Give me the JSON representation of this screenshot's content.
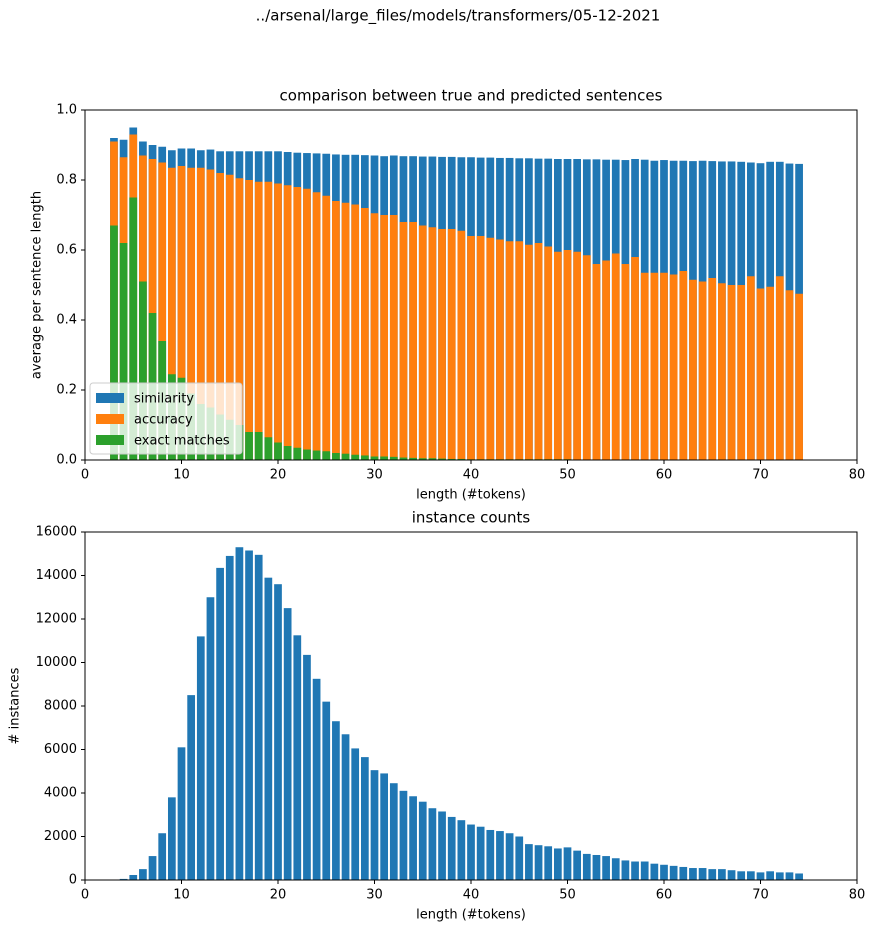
{
  "title": "../arsenal/large_files/models/transformers/05-12-2021",
  "chart_data": [
    {
      "type": "bar",
      "title": "comparison between true and predicted sentences",
      "xlabel": "length (#tokens)",
      "ylabel": "average per sentence length",
      "x": [
        3,
        4,
        5,
        6,
        7,
        8,
        9,
        10,
        11,
        12,
        13,
        14,
        15,
        16,
        17,
        18,
        19,
        20,
        21,
        22,
        23,
        24,
        25,
        26,
        27,
        28,
        29,
        30,
        31,
        32,
        33,
        34,
        35,
        36,
        37,
        38,
        39,
        40,
        41,
        42,
        43,
        44,
        45,
        46,
        47,
        48,
        49,
        50,
        51,
        52,
        53,
        54,
        55,
        56,
        57,
        58,
        59,
        60,
        61,
        62,
        63,
        64,
        65,
        66,
        67,
        68,
        69,
        70,
        71,
        72,
        73,
        74
      ],
      "series": [
        {
          "name": "similarity",
          "color": "#1f77b4",
          "values": [
            0.92,
            0.915,
            0.95,
            0.91,
            0.9,
            0.895,
            0.885,
            0.89,
            0.89,
            0.885,
            0.887,
            0.882,
            0.882,
            0.882,
            0.882,
            0.882,
            0.882,
            0.882,
            0.88,
            0.878,
            0.877,
            0.876,
            0.875,
            0.873,
            0.872,
            0.872,
            0.871,
            0.87,
            0.868,
            0.87,
            0.868,
            0.868,
            0.867,
            0.867,
            0.866,
            0.866,
            0.865,
            0.865,
            0.864,
            0.864,
            0.863,
            0.863,
            0.862,
            0.862,
            0.861,
            0.861,
            0.86,
            0.86,
            0.86,
            0.859,
            0.859,
            0.858,
            0.858,
            0.857,
            0.86,
            0.858,
            0.855,
            0.857,
            0.855,
            0.855,
            0.854,
            0.855,
            0.854,
            0.853,
            0.853,
            0.852,
            0.85,
            0.848,
            0.852,
            0.852,
            0.847,
            0.846
          ]
        },
        {
          "name": "accuracy",
          "color": "#ff7f0e",
          "values": [
            0.91,
            0.865,
            0.93,
            0.87,
            0.86,
            0.85,
            0.835,
            0.84,
            0.835,
            0.835,
            0.83,
            0.82,
            0.815,
            0.805,
            0.8,
            0.795,
            0.795,
            0.79,
            0.785,
            0.78,
            0.775,
            0.765,
            0.755,
            0.74,
            0.735,
            0.73,
            0.72,
            0.705,
            0.7,
            0.7,
            0.68,
            0.68,
            0.67,
            0.665,
            0.66,
            0.66,
            0.655,
            0.64,
            0.64,
            0.635,
            0.63,
            0.625,
            0.625,
            0.615,
            0.62,
            0.61,
            0.595,
            0.6,
            0.595,
            0.585,
            0.56,
            0.57,
            0.59,
            0.56,
            0.58,
            0.535,
            0.535,
            0.535,
            0.53,
            0.54,
            0.515,
            0.51,
            0.52,
            0.505,
            0.5,
            0.5,
            0.525,
            0.49,
            0.495,
            0.525,
            0.485,
            0.475
          ]
        },
        {
          "name": "exact matches",
          "color": "#2ca02c",
          "values": [
            0.67,
            0.62,
            0.75,
            0.51,
            0.42,
            0.34,
            0.245,
            0.235,
            0.19,
            0.16,
            0.15,
            0.13,
            0.115,
            0.1,
            0.08,
            0.08,
            0.065,
            0.05,
            0.04,
            0.035,
            0.03,
            0.027,
            0.025,
            0.02,
            0.018,
            0.015,
            0.013,
            0.01,
            0.01,
            0.009,
            0.007,
            0.006,
            0.005,
            0.005,
            0.004,
            0.003,
            0.003,
            0.002,
            0.002,
            0.002,
            0.002,
            0.002,
            0.002,
            0.002,
            0.002,
            0.002,
            0.002,
            0.002,
            0.001,
            0.001,
            0.001,
            0.001,
            0.001,
            0.001,
            0.001,
            0.001,
            0.001,
            0.001,
            0.001,
            0.001,
            0,
            0,
            0,
            0,
            0,
            0,
            0,
            0,
            0,
            0,
            0,
            0
          ]
        }
      ],
      "xlim": [
        0,
        80
      ],
      "xticks": [
        0,
        10,
        20,
        30,
        40,
        50,
        60,
        70,
        80
      ],
      "ylim": [
        0,
        1
      ],
      "yticks": [
        {
          "value": 0,
          "label": "0.0"
        },
        0.2,
        0.4,
        0.6,
        0.8,
        {
          "value": 1,
          "label": "1.0"
        }
      ],
      "legend": "lower left"
    },
    {
      "type": "bar",
      "title": "instance counts",
      "xlabel": "length (#tokens)",
      "ylabel": "# instances",
      "x": [
        3,
        4,
        5,
        6,
        7,
        8,
        9,
        10,
        11,
        12,
        13,
        14,
        15,
        16,
        17,
        18,
        19,
        20,
        21,
        22,
        23,
        24,
        25,
        26,
        27,
        28,
        29,
        30,
        31,
        32,
        33,
        34,
        35,
        36,
        37,
        38,
        39,
        40,
        41,
        42,
        43,
        44,
        45,
        46,
        47,
        48,
        49,
        50,
        51,
        52,
        53,
        54,
        55,
        56,
        57,
        58,
        59,
        60,
        61,
        62,
        63,
        64,
        65,
        66,
        67,
        68,
        69,
        70,
        71,
        72,
        73,
        74
      ],
      "series": [
        {
          "name": "instances",
          "color": "#1f77b4",
          "values": [
            10,
            50,
            230,
            500,
            1100,
            2150,
            3800,
            6100,
            8500,
            11200,
            13000,
            14350,
            14900,
            15300,
            15150,
            14950,
            13900,
            13600,
            12500,
            11250,
            10350,
            9250,
            8200,
            7300,
            6700,
            6050,
            5650,
            5050,
            4900,
            4450,
            4100,
            3850,
            3600,
            3300,
            3150,
            2900,
            2750,
            2550,
            2450,
            2300,
            2250,
            2150,
            2000,
            1650,
            1600,
            1550,
            1450,
            1500,
            1350,
            1200,
            1150,
            1100,
            1000,
            900,
            850,
            850,
            750,
            700,
            650,
            600,
            550,
            550,
            500,
            500,
            450,
            400,
            400,
            350,
            400,
            350,
            350,
            300
          ]
        }
      ],
      "xlim": [
        0,
        80
      ],
      "xticks": [
        0,
        10,
        20,
        30,
        40,
        50,
        60,
        70,
        80
      ],
      "ylim": [
        0,
        16000
      ],
      "yticks": [
        0,
        2000,
        4000,
        6000,
        8000,
        10000,
        12000,
        14000,
        16000
      ]
    }
  ]
}
